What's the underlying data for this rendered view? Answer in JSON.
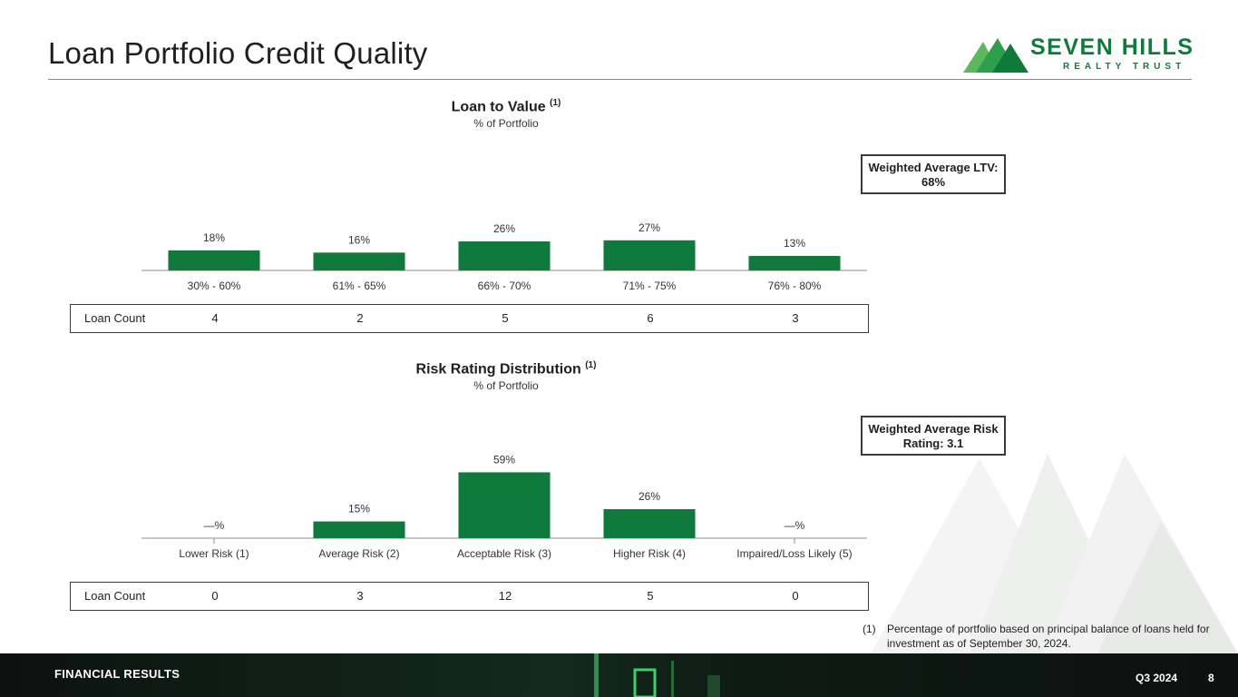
{
  "slide": {
    "title": "Loan Portfolio Credit Quality",
    "footer_section": "FINANCIAL RESULTS",
    "footer_period": "Q3 2024",
    "page_number": "8"
  },
  "logo": {
    "name": "SEVEN HILLS",
    "tagline": "REALTY TRUST",
    "color": "#107a3c"
  },
  "colors": {
    "bar": "#107a3c"
  },
  "chart_data": [
    {
      "type": "bar",
      "title": "Loan to Value",
      "title_note": "(1)",
      "subtitle": "% of Portfolio",
      "categories": [
        "30% - 60%",
        "61% - 65%",
        "66% - 70%",
        "71% - 75%",
        "76% - 80%"
      ],
      "values": [
        18,
        16,
        26,
        27,
        13
      ],
      "value_labels": [
        "18%",
        "16%",
        "26%",
        "27%",
        "13%"
      ],
      "ylim": [
        0,
        60
      ],
      "callout": "Weighted Average LTV: 68%",
      "count_label": "Loan Count",
      "counts": [
        "4",
        "2",
        "5",
        "6",
        "3"
      ]
    },
    {
      "type": "bar",
      "title": "Risk Rating Distribution",
      "title_note": "(1)",
      "subtitle": "% of Portfolio",
      "categories": [
        "Lower Risk (1)",
        "Average Risk (2)",
        "Acceptable Risk (3)",
        "Higher Risk (4)",
        "Impaired/Loss Likely (5)"
      ],
      "values": [
        0,
        15,
        59,
        26,
        0
      ],
      "value_labels": [
        "—%",
        "15%",
        "59%",
        "26%",
        "—%"
      ],
      "ylim": [
        0,
        60
      ],
      "callout": "Weighted Average Risk Rating: 3.1",
      "count_label": "Loan Count",
      "counts": [
        "0",
        "3",
        "12",
        "5",
        "0"
      ]
    }
  ],
  "footnote": {
    "number": "(1)",
    "text": "Percentage of portfolio based on principal balance of loans held for investment as of September 30, 2024."
  }
}
